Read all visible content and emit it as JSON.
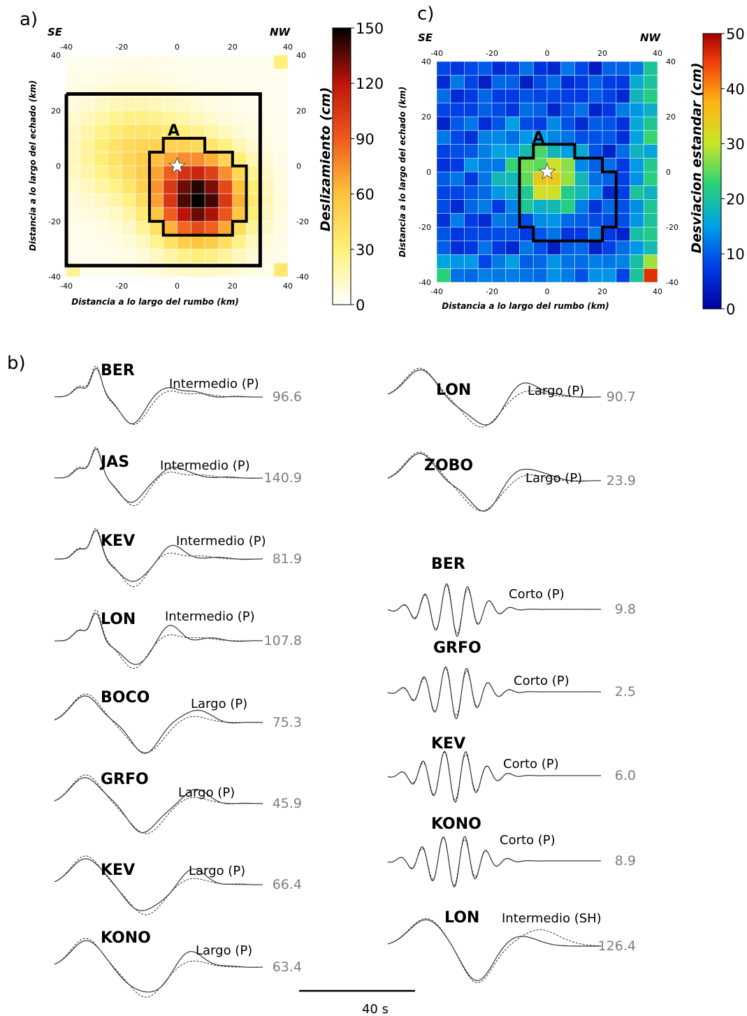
{
  "labels": {
    "a": "a)",
    "b": "b)",
    "c": "c)"
  },
  "panel_a": {
    "corner_left": "SE",
    "corner_right": "NW",
    "xlabel": "Distancia a lo largo del rumbo (km)",
    "ylabel": "Distancia a lo largo del echado (km)",
    "asperity_label": "A",
    "colorbar_title": "Deslizamiento (cm)",
    "colorbar_ticks": [
      "0",
      "30",
      "60",
      "90",
      "120",
      "150"
    ],
    "ticks": [
      "-40",
      "-20",
      "0",
      "20",
      "40"
    ]
  },
  "panel_c": {
    "corner_left": "SE",
    "corner_right": "NW",
    "xlabel": "Distancia a lo largo del rumbo (km)",
    "ylabel": "Distancia a lo largo del echado (km)",
    "asperity_label": "A",
    "colorbar_title": "Desviacion estandar (cm)",
    "colorbar_ticks": [
      "0",
      "10",
      "20",
      "30",
      "40",
      "50"
    ],
    "ticks": [
      "-40",
      "-20",
      "0",
      "20",
      "40"
    ]
  },
  "scale_bar": "40 s",
  "chart_data": [
    {
      "type": "heatmap",
      "name": "slip",
      "x_range": [
        -40,
        40
      ],
      "y_range": [
        -40,
        40
      ],
      "cell_km": 5,
      "color_range": [
        0,
        150
      ],
      "hypocenter": [
        0,
        0
      ],
      "centers": [
        {
          "x": 8,
          "y": -12,
          "amp": 145,
          "sx": 11,
          "sy": 11
        },
        {
          "x": -15,
          "y": 5,
          "amp": 40,
          "sx": 14,
          "sy": 12
        }
      ],
      "isolated": [
        [
          38,
          40,
          10
        ],
        [
          -38,
          -38,
          8
        ],
        [
          38,
          -38,
          12
        ]
      ],
      "asperity_polygon": [
        [
          -10,
          5
        ],
        [
          -5,
          5
        ],
        [
          -5,
          10
        ],
        [
          10,
          10
        ],
        [
          10,
          5
        ],
        [
          20,
          5
        ],
        [
          20,
          0
        ],
        [
          25,
          0
        ],
        [
          25,
          -20
        ],
        [
          20,
          -20
        ],
        [
          20,
          -25
        ],
        [
          -5,
          -25
        ],
        [
          -5,
          -20
        ],
        [
          -10,
          -20
        ]
      ],
      "big_rectangle": [
        [
          -40,
          26
        ],
        [
          30,
          26
        ],
        [
          30,
          -36
        ],
        [
          -40,
          -36
        ]
      ]
    },
    {
      "type": "heatmap",
      "name": "standard deviation",
      "x_range": [
        -40,
        40
      ],
      "y_range": [
        -40,
        40
      ],
      "cell_km": 5,
      "color_range": [
        0,
        50
      ],
      "hypocenter": [
        0,
        0
      ],
      "asperity_polygon": [
        [
          -10,
          5
        ],
        [
          -5,
          5
        ],
        [
          -5,
          10
        ],
        [
          10,
          10
        ],
        [
          10,
          5
        ],
        [
          20,
          5
        ],
        [
          20,
          0
        ],
        [
          25,
          0
        ],
        [
          25,
          -20
        ],
        [
          20,
          -20
        ],
        [
          20,
          -25
        ],
        [
          -5,
          -25
        ],
        [
          -5,
          -20
        ],
        [
          -10,
          -20
        ]
      ]
    },
    {
      "type": "line",
      "name": "waveform fits",
      "columns": [
        [
          {
            "station": "BER",
            "wave": "Intermedio (P)",
            "amp": "96.6",
            "shape": "intermediate",
            "seed": 1
          },
          {
            "station": "JAS",
            "wave": "Intermedio (P)",
            "amp": "140.9",
            "shape": "intermediate",
            "seed": 2
          },
          {
            "station": "KEV",
            "wave": "Intermedio (P)",
            "amp": "81.9",
            "shape": "intermediate",
            "seed": 3
          },
          {
            "station": "LON",
            "wave": "Intermedio (P)",
            "amp": "107.8",
            "shape": "intermediate",
            "seed": 4
          },
          {
            "station": "BOCO",
            "wave": "Largo (P)",
            "amp": "75.3",
            "shape": "long",
            "seed": 5
          },
          {
            "station": "GRFO",
            "wave": "Largo (P)",
            "amp": "45.9",
            "shape": "long",
            "seed": 6
          },
          {
            "station": "KEV",
            "wave": "Largo (P)",
            "amp": "66.4",
            "shape": "long",
            "seed": 7
          },
          {
            "station": "KONO",
            "wave": "Largo (P)",
            "amp": "63.4",
            "shape": "long",
            "seed": 8
          }
        ],
        [
          {
            "station": "LON",
            "wave": "Largo (P)",
            "amp": "90.7",
            "shape": "long",
            "seed": 9
          },
          {
            "station": "ZOBO",
            "wave": "Largo (P)",
            "amp": "23.9",
            "shape": "long",
            "seed": 10
          },
          {
            "station": "BER",
            "wave": "Corto (P)",
            "amp": "9.8",
            "shape": "short",
            "seed": 11
          },
          {
            "station": "GRFO",
            "wave": "Corto (P)",
            "amp": "2.5",
            "shape": "short",
            "seed": 12
          },
          {
            "station": "KEV",
            "wave": "Corto (P)",
            "amp": "6.0",
            "shape": "short",
            "seed": 13
          },
          {
            "station": "KONO",
            "wave": "Corto (P)",
            "amp": "8.9",
            "shape": "short",
            "seed": 14
          },
          {
            "station": "LON",
            "wave": "Intermedio (SH)",
            "amp": "126.4",
            "shape": "sh",
            "seed": 15
          }
        ]
      ]
    }
  ]
}
